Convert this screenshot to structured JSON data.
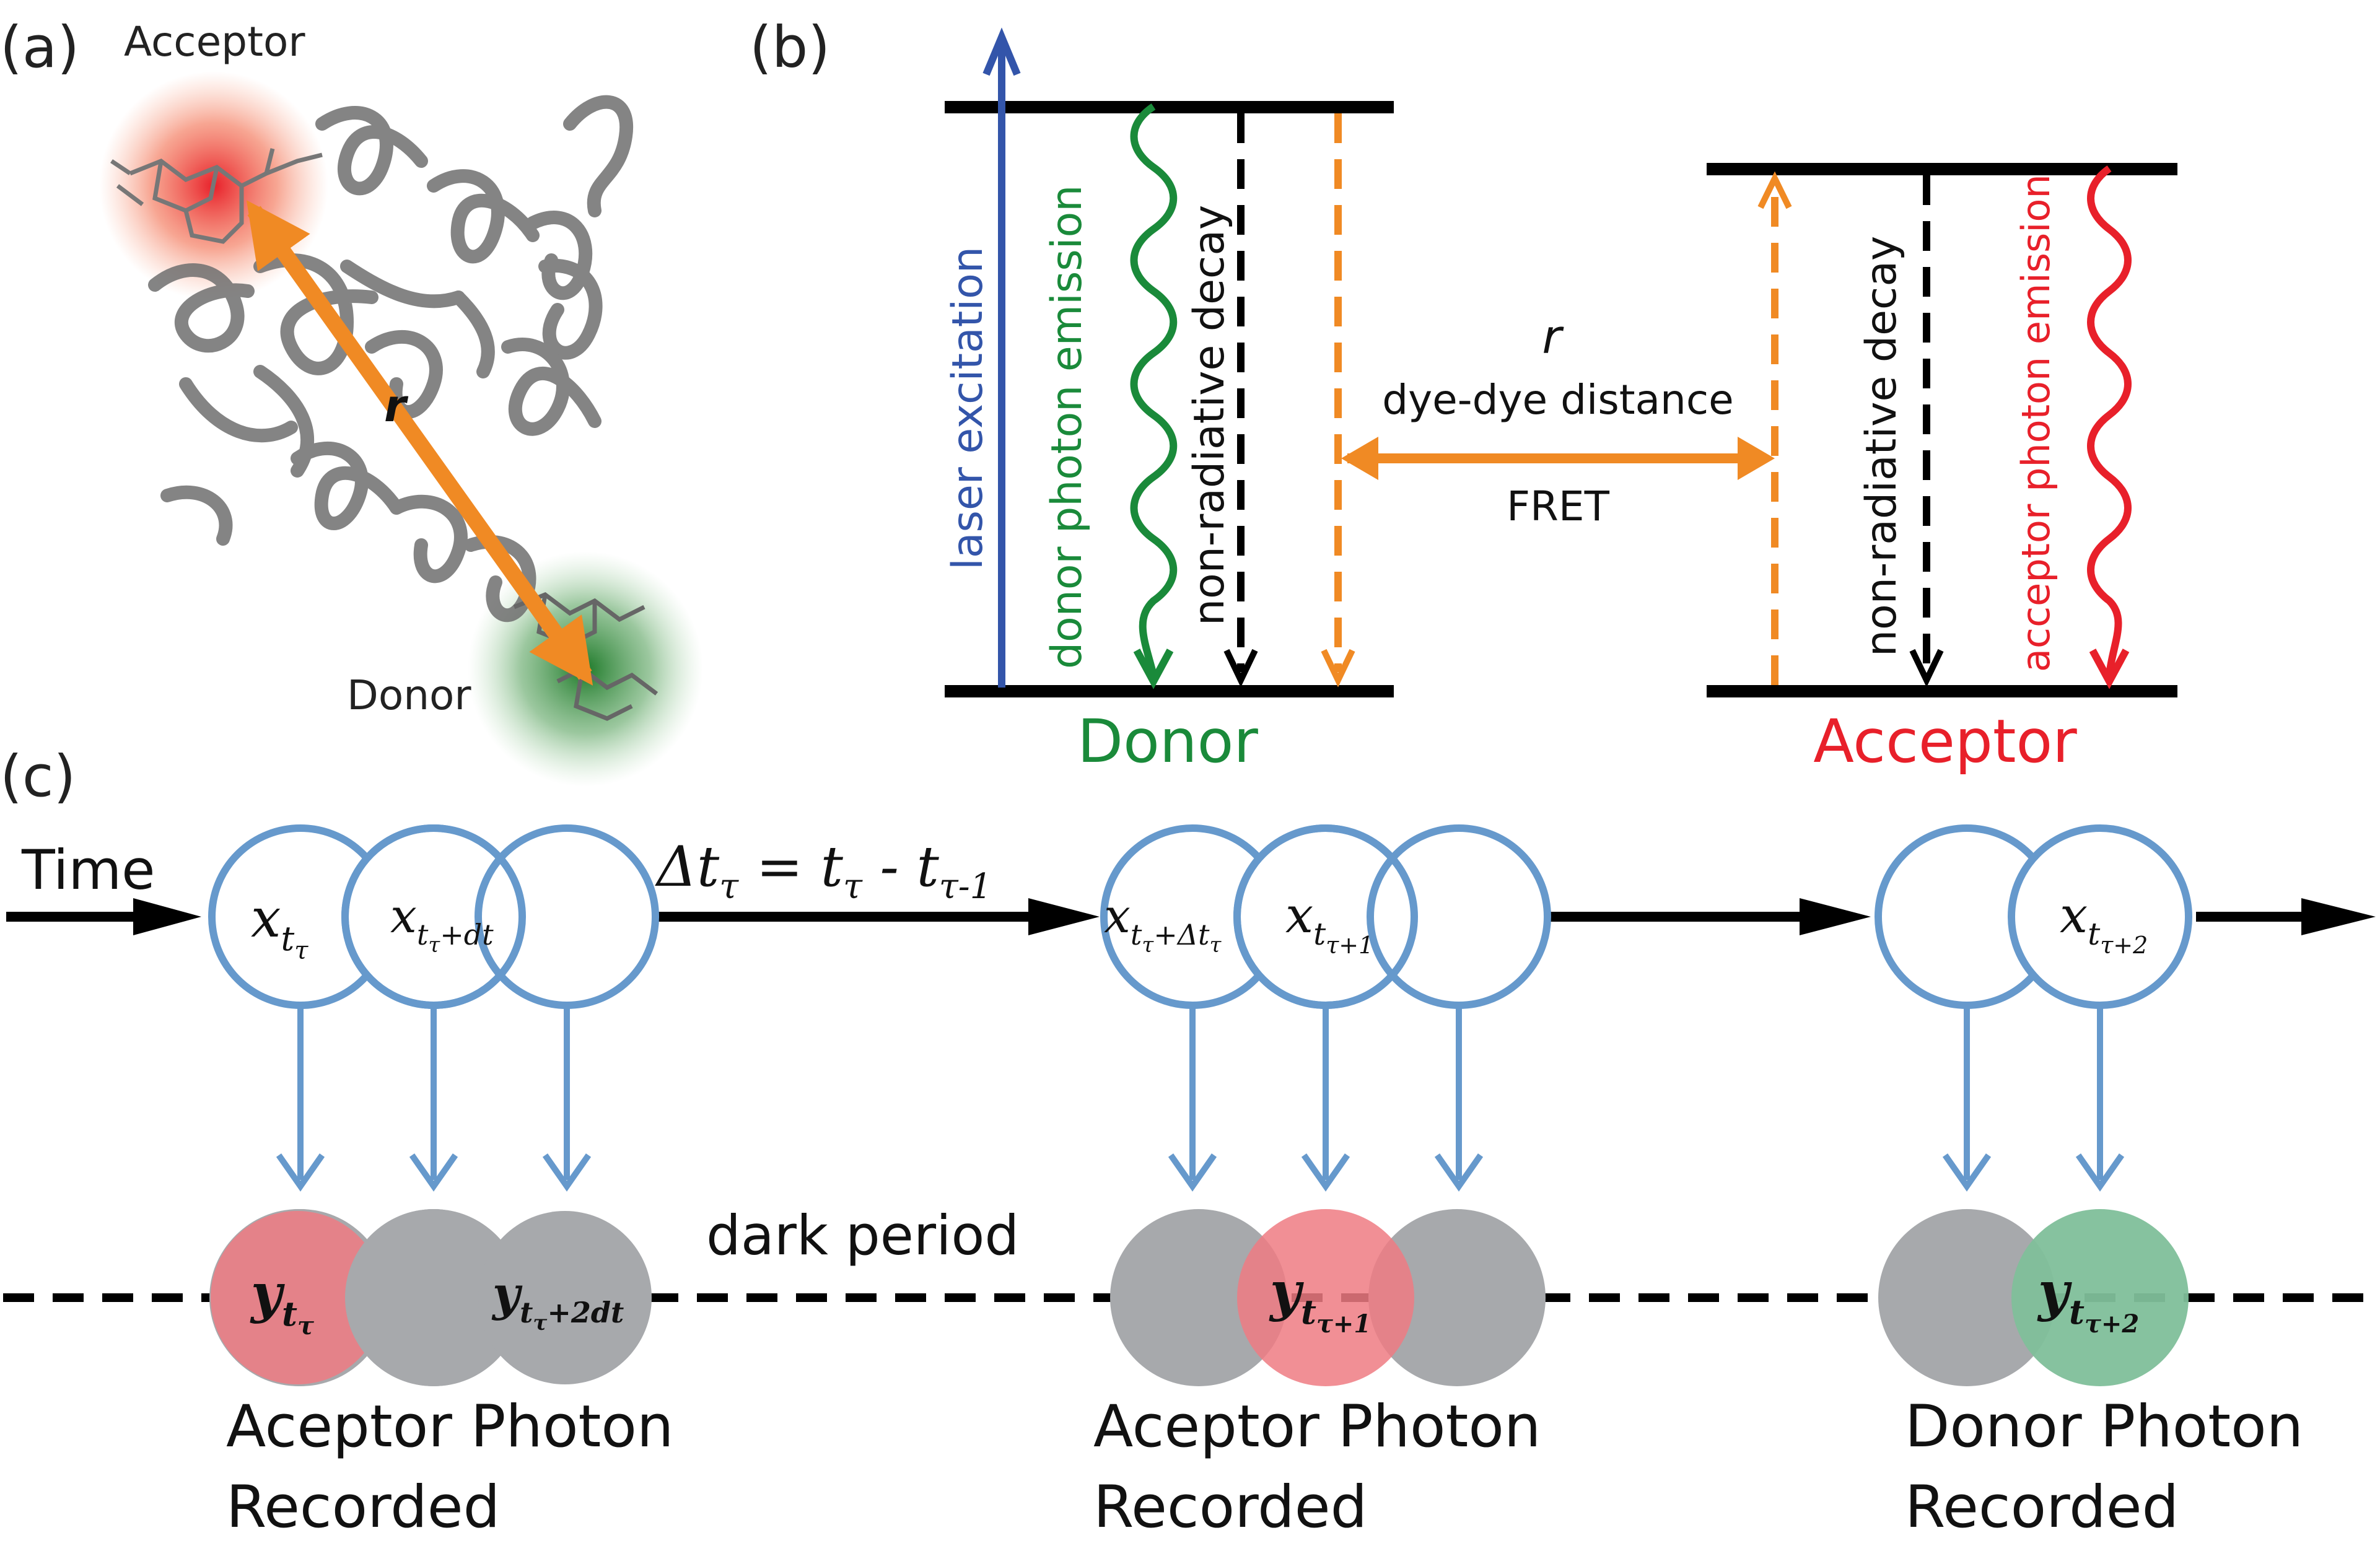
{
  "panel_a": {
    "label": "(a)",
    "acceptor_label": "Acceptor",
    "donor_label": "Donor",
    "distance_symbol": "r"
  },
  "panel_b": {
    "label": "(b)",
    "laser": "laser excitation",
    "donor_emission": "donor photon emission",
    "donor_nonrad": "non-radiative decay",
    "distance_symbol": "r",
    "distance_label": "dye-dye distance",
    "fret_label": "FRET",
    "acceptor_nonrad": "non-radiative decay",
    "acceptor_emission": "acceptor photon emission",
    "donor_level": "Donor",
    "acceptor_level": "Acceptor"
  },
  "panel_c": {
    "label": "(c)",
    "time_label": "Time",
    "delta_eq_lhs": "Δt",
    "delta_eq_sub1": "τ",
    "delta_eq_mid": " = t",
    "delta_eq_sub2": "τ",
    "delta_eq_minus": " - t",
    "delta_eq_sub3": "τ-1",
    "dark_period": "dark period",
    "states": [
      {
        "base": "x",
        "sub": "t",
        "subsub": "τ"
      },
      {
        "base": "x",
        "sub": "t",
        "subsub": "τ",
        "extra": "+dt"
      },
      {
        "base": "x",
        "sub": "t",
        "subsub": "τ",
        "extra": "+Δt",
        "extrasub": "τ"
      },
      {
        "base": "x",
        "sub": "t",
        "subsub": "τ+1"
      },
      {
        "base": "x",
        "sub": "t",
        "subsub": "τ+2"
      }
    ],
    "observations": [
      {
        "base": "y",
        "sub": "t",
        "subsub": "τ"
      },
      {
        "base": "y",
        "sub": "t",
        "subsub": "τ",
        "extra": "+2dt"
      },
      {
        "base": "y",
        "sub": "t",
        "subsub": "τ+1"
      },
      {
        "base": "y",
        "sub": "t",
        "subsub": "τ+2"
      }
    ],
    "caption1_line1": "Aceptor Photon",
    "caption1_line2": "Recorded",
    "caption2_line1": "Aceptor Photon",
    "caption2_line2": "Recorded",
    "caption3_line1": "Donor Photon",
    "caption3_line2": "Recorded"
  },
  "colors": {
    "blue": "#6699cc",
    "laser_blue": "#3355aa",
    "green": "#1a8a3a",
    "red": "#e8202a",
    "orange": "#f08a24",
    "gray_circle": "#a7a9ac",
    "pink_circle": "#ef7b82",
    "green_circle": "#7fbf9a"
  }
}
